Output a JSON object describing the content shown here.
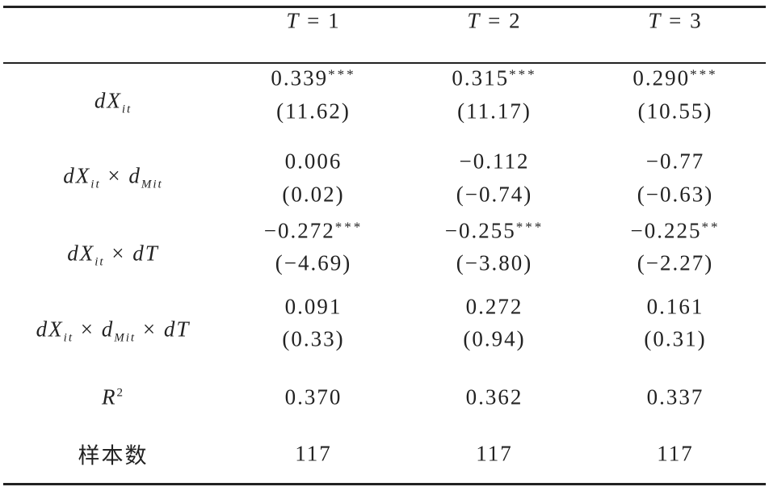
{
  "table": {
    "header": [
      [
        {
          "text": "T"
        },
        {
          "op": " = 1"
        }
      ],
      [
        {
          "text": "T"
        },
        {
          "op": " = 2"
        }
      ],
      [
        {
          "text": "T"
        },
        {
          "op": " = 3"
        }
      ]
    ],
    "rows": [
      {
        "label": [
          {
            "text": "dX"
          },
          {
            "sub": "it"
          }
        ],
        "cells": [
          {
            "coef": "0.339",
            "stars": "***",
            "t": "(11.62)"
          },
          {
            "coef": "0.315",
            "stars": "***",
            "t": "(11.17)"
          },
          {
            "coef": "0.290",
            "stars": "***",
            "t": "(10.55)"
          }
        ]
      },
      {
        "label": [
          {
            "text": "dX"
          },
          {
            "sub": "it"
          },
          {
            "op": " × "
          },
          {
            "text": "d"
          },
          {
            "sub": "Mit"
          }
        ],
        "cells": [
          {
            "coef": "0.006",
            "t": "(0.02)"
          },
          {
            "coef": "−0.112",
            "t": "(−0.74)"
          },
          {
            "coef": "−0.77",
            "t": "(−0.63)"
          }
        ]
      },
      {
        "label": [
          {
            "text": "dX"
          },
          {
            "sub": "it"
          },
          {
            "op": " × "
          },
          {
            "text": "dT"
          }
        ],
        "cells": [
          {
            "coef": "−0.272",
            "stars": "***",
            "t": "(−4.69)"
          },
          {
            "coef": "−0.255",
            "stars": "***",
            "t": "(−3.80)"
          },
          {
            "coef": "−0.225",
            "stars": "**",
            "t": "(−2.27)"
          }
        ]
      },
      {
        "label": [
          {
            "text": "dX"
          },
          {
            "sub": "it"
          },
          {
            "op": " × "
          },
          {
            "text": "d"
          },
          {
            "sub": "Mit"
          },
          {
            "op": " × "
          },
          {
            "text": "dT"
          }
        ],
        "cells": [
          {
            "coef": "0.091",
            "t": "(0.33)"
          },
          {
            "coef": "0.272",
            "t": "(0.94)"
          },
          {
            "coef": "0.161",
            "t": "(0.31)"
          }
        ]
      },
      {
        "label": [
          {
            "text": "R"
          },
          {
            "sup": "2"
          }
        ],
        "cells": [
          {
            "coef": "0.370"
          },
          {
            "coef": "0.362"
          },
          {
            "coef": "0.337"
          }
        ]
      },
      {
        "label": [
          {
            "op": "样本数"
          }
        ],
        "cells": [
          {
            "coef": "117"
          },
          {
            "coef": "117"
          },
          {
            "coef": "117"
          }
        ]
      }
    ]
  }
}
